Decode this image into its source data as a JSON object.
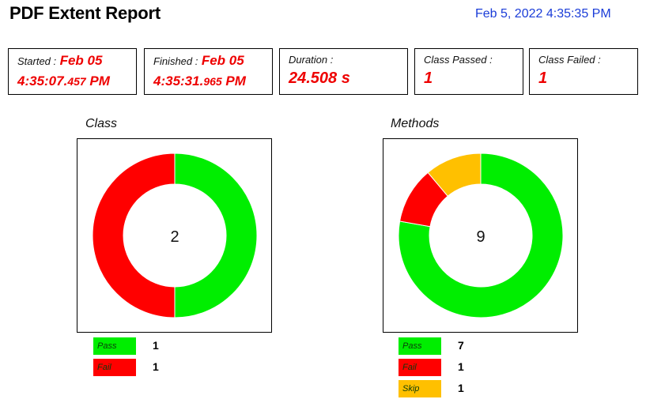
{
  "header": {
    "title": "PDF Extent Report",
    "timestamp": "Feb 5, 2022 4:35:35 PM"
  },
  "cards": {
    "started": {
      "label": "Started :",
      "date": "Feb 05",
      "time": "4:35:07.",
      "ms": "457",
      "suffix": " PM"
    },
    "finished": {
      "label": "Finished :",
      "date": "Feb 05",
      "time": "4:35:31.",
      "ms": "965",
      "suffix": " PM"
    },
    "duration": {
      "label": "Duration :",
      "value": "24.508 s"
    },
    "class_passed": {
      "label": "Class Passed :",
      "value": "1"
    },
    "class_failed": {
      "label": "Class Failed :",
      "value": "1"
    }
  },
  "colors": {
    "pass": "#00ee00",
    "fail": "#ff0000",
    "skip": "#ffc000",
    "date_red": "#ee0000",
    "timestamp_blue": "#1a3cd8"
  },
  "charts": {
    "class": {
      "title": "Class",
      "total": "2",
      "legend": [
        {
          "label": "Pass",
          "count": "1",
          "color": "#00ee00"
        },
        {
          "label": "Fail",
          "count": "1",
          "color": "#ff0000"
        }
      ]
    },
    "methods": {
      "title": "Methods",
      "total": "9",
      "legend": [
        {
          "label": "Pass",
          "count": "7",
          "color": "#00ee00"
        },
        {
          "label": "Fail",
          "count": "1",
          "color": "#ff0000"
        },
        {
          "label": "Skip",
          "count": "1",
          "color": "#ffc000"
        }
      ]
    }
  },
  "chart_data": [
    {
      "type": "pie",
      "title": "Class",
      "categories": [
        "Pass",
        "Fail"
      ],
      "values": [
        1,
        1
      ],
      "center_label": "2"
    },
    {
      "type": "pie",
      "title": "Methods",
      "categories": [
        "Pass",
        "Fail",
        "Skip"
      ],
      "values": [
        7,
        1,
        1
      ],
      "center_label": "9"
    }
  ]
}
